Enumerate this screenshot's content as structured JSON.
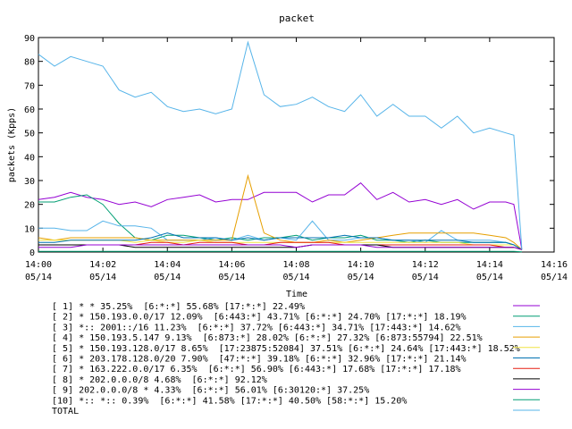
{
  "chart_data": {
    "type": "line",
    "title": "packet",
    "xlabel": "Time",
    "ylabel": "packets (Kpps)",
    "xlim": [
      "14:00",
      "14:16"
    ],
    "ylim": [
      0,
      90
    ],
    "y_ticks": [
      0,
      10,
      20,
      30,
      40,
      50,
      60,
      70,
      80,
      90
    ],
    "x_ticks": [
      {
        "time": "14:00",
        "date": "05/14"
      },
      {
        "time": "14:02",
        "date": "05/14"
      },
      {
        "time": "14:04",
        "date": "05/14"
      },
      {
        "time": "14:06",
        "date": "05/14"
      },
      {
        "time": "14:08",
        "date": "05/14"
      },
      {
        "time": "14:10",
        "date": "05/14"
      },
      {
        "time": "14:12",
        "date": "05/14"
      },
      {
        "time": "14:14",
        "date": "05/14"
      },
      {
        "time": "14:16",
        "date": "05/14"
      }
    ],
    "legend_position": "bottom",
    "x": [
      "14:00:00",
      "14:00:30",
      "14:01:00",
      "14:01:30",
      "14:02:00",
      "14:02:30",
      "14:03:00",
      "14:03:30",
      "14:04:00",
      "14:04:30",
      "14:05:00",
      "14:05:30",
      "14:06:00",
      "14:06:30",
      "14:07:00",
      "14:07:30",
      "14:08:00",
      "14:08:30",
      "14:09:00",
      "14:09:30",
      "14:10:00",
      "14:10:30",
      "14:11:00",
      "14:11:30",
      "14:12:00",
      "14:12:30",
      "14:13:00",
      "14:13:30",
      "14:14:00",
      "14:14:30",
      "14:14:45",
      "14:15:00"
    ],
    "series": [
      {
        "name": "[ 1] * * 35.25%  [6:*:*] 55.68% [17:*:*] 22.49%",
        "color": "#9400d3",
        "values": [
          22,
          23,
          25,
          23,
          22,
          20,
          21,
          19,
          22,
          23,
          24,
          21,
          22,
          22,
          25,
          25,
          25,
          21,
          24,
          24,
          29,
          22,
          25,
          21,
          22,
          20,
          22,
          18,
          21,
          21,
          20,
          1
        ]
      },
      {
        "name": "[ 2] * 150.193.0.0/17 12.09%  [6:443:*] 43.71% [6:*:*] 24.70% [17:*:*] 18.19%",
        "color": "#009e73",
        "values": [
          21,
          21,
          23,
          24,
          20,
          12,
          6,
          5,
          7,
          7,
          6,
          5,
          6,
          5,
          6,
          6,
          7,
          5,
          6,
          6,
          7,
          5,
          5,
          4,
          5,
          4,
          4,
          4,
          4,
          4,
          3,
          1
        ]
      },
      {
        "name": "[ 3] *:: 2001::/16 11.23%  [6:*:*] 37.72% [6:443:*] 34.71% [17:443:*] 14.62%",
        "color": "#56b4e9",
        "values": [
          10,
          10,
          9,
          9,
          13,
          11,
          11,
          10,
          5,
          5,
          5,
          6,
          5,
          7,
          5,
          6,
          5,
          13,
          5,
          5,
          6,
          6,
          5,
          5,
          4,
          9,
          5,
          5,
          5,
          4,
          3,
          1
        ]
      },
      {
        "name": "[ 4] * 150.193.5.147 9.13%  [6:873:*] 28.02% [6:*:*] 27.32% [6:873:55794] 22.51%",
        "color": "#e69f00",
        "values": [
          6,
          5,
          6,
          6,
          6,
          6,
          6,
          5,
          5,
          5,
          5,
          5,
          5,
          32,
          8,
          5,
          4,
          4,
          5,
          4,
          5,
          6,
          7,
          8,
          8,
          8,
          8,
          8,
          7,
          6,
          4,
          1
        ]
      },
      {
        "name": "[ 5] * 150.193.128.0/17 8.65%  [17:23875:52084] 37.51% [6:*:*] 24.64% [17:443:*] 18.52%",
        "color": "#f0e442",
        "values": [
          5,
          5,
          5,
          5,
          5,
          5,
          4,
          5,
          4,
          4,
          5,
          4,
          4,
          4,
          4,
          4,
          4,
          4,
          4,
          4,
          4,
          4,
          4,
          4,
          4,
          4,
          4,
          3,
          3,
          3,
          3,
          1
        ]
      },
      {
        "name": "[ 6] * 203.178.128.0/20 7.90%  [47:*:*] 39.18% [6:*:*] 32.96% [17:*:*] 21.14%",
        "color": "#0072b2",
        "values": [
          4,
          4,
          5,
          5,
          5,
          5,
          5,
          6,
          8,
          6,
          6,
          6,
          5,
          6,
          5,
          6,
          6,
          6,
          6,
          7,
          6,
          6,
          5,
          5,
          5,
          5,
          5,
          4,
          4,
          4,
          3,
          1
        ]
      },
      {
        "name": "[ 7] * 163.222.0.0/17 6.35%  [6:*:*] 56.90% [6:443:*] 17.68% [17:*:*] 17.18%",
        "color": "#e51e10",
        "values": [
          3,
          3,
          3,
          3,
          3,
          3,
          3,
          4,
          4,
          3,
          4,
          4,
          4,
          3,
          3,
          4,
          4,
          4,
          4,
          3,
          3,
          3,
          3,
          3,
          3,
          3,
          3,
          3,
          3,
          2,
          2,
          1
        ]
      },
      {
        "name": "[ 8] * 202.0.0.0/8 4.68%  [6:*:*] 92.12%",
        "color": "#000000",
        "values": [
          3,
          3,
          3,
          3,
          3,
          3,
          2,
          2,
          2,
          2,
          2,
          2,
          2,
          2,
          2,
          2,
          2,
          3,
          3,
          3,
          3,
          3,
          2,
          2,
          2,
          2,
          2,
          2,
          2,
          2,
          2,
          1
        ]
      },
      {
        "name": "[ 9] 202.0.0.0/8 * 4.33%  [6:*:*] 56.01% [6:30120:*] 37.25%",
        "color": "#9400d3",
        "values": [
          2,
          2,
          2,
          3,
          3,
          3,
          3,
          3,
          3,
          3,
          3,
          3,
          3,
          3,
          3,
          3,
          2,
          3,
          3,
          3,
          3,
          2,
          2,
          2,
          2,
          2,
          2,
          2,
          2,
          2,
          2,
          1
        ]
      },
      {
        "name": "[10] *:: *:: 0.39%  [6:*:*] 41.58% [17:*:*] 40.50% [58:*:*] 15.20%",
        "color": "#009e73",
        "values": [
          0.3,
          0.3,
          0.3,
          0.3,
          0.3,
          0.3,
          0.3,
          0.3,
          0.3,
          0.3,
          0.3,
          0.3,
          0.3,
          0.3,
          0.3,
          0.3,
          0.3,
          0.3,
          0.3,
          0.3,
          0.3,
          0.3,
          0.3,
          0.3,
          0.3,
          0.3,
          0.3,
          0.3,
          0.3,
          0.3,
          0.3,
          0.1
        ]
      },
      {
        "name": "TOTAL",
        "color": "#56b4e9",
        "values": [
          83,
          78,
          82,
          80,
          78,
          68,
          65,
          67,
          61,
          59,
          60,
          58,
          60,
          88,
          66,
          61,
          62,
          65,
          61,
          59,
          66,
          57,
          62,
          57,
          57,
          52,
          57,
          50,
          52,
          50,
          49,
          1
        ]
      }
    ]
  }
}
